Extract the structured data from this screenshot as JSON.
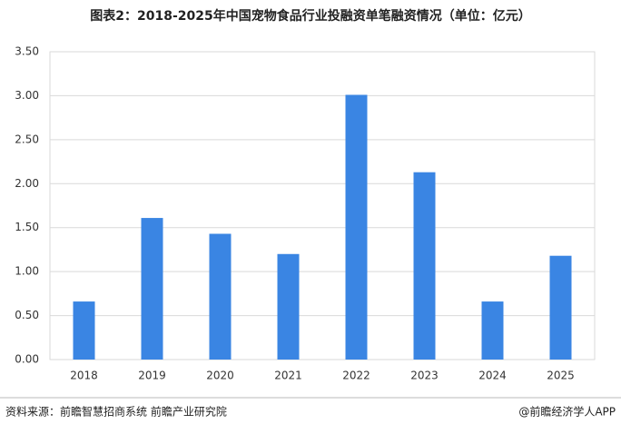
{
  "chart_data": {
    "type": "bar",
    "title": "图表2：2018-2025年中国宠物食品行业投融资单笔融资情况（单位：亿元）",
    "categories": [
      "2018",
      "2019",
      "2020",
      "2021",
      "2022",
      "2023",
      "2024",
      "2025"
    ],
    "values": [
      0.66,
      1.61,
      1.43,
      1.2,
      3.01,
      2.13,
      0.66,
      1.18
    ],
    "color": "#3a85e3",
    "ylim": [
      0,
      3.5
    ],
    "yticks": [
      {
        "value": 0,
        "label": "0.00"
      },
      {
        "value": 0.5,
        "label": "0.50"
      },
      {
        "value": 1,
        "label": "1.00"
      },
      {
        "value": 1.5,
        "label": "1.50"
      },
      {
        "value": 2,
        "label": "2.00"
      },
      {
        "value": 2.5,
        "label": "2.50"
      },
      {
        "value": 3,
        "label": "3.00"
      },
      {
        "value": 3.5,
        "label": "3.50"
      }
    ],
    "grid": true
  },
  "footer": {
    "source": "资料来源：前瞻智慧招商系统  前瞻产业研究院",
    "brand": "@前瞻经济学人APP"
  }
}
